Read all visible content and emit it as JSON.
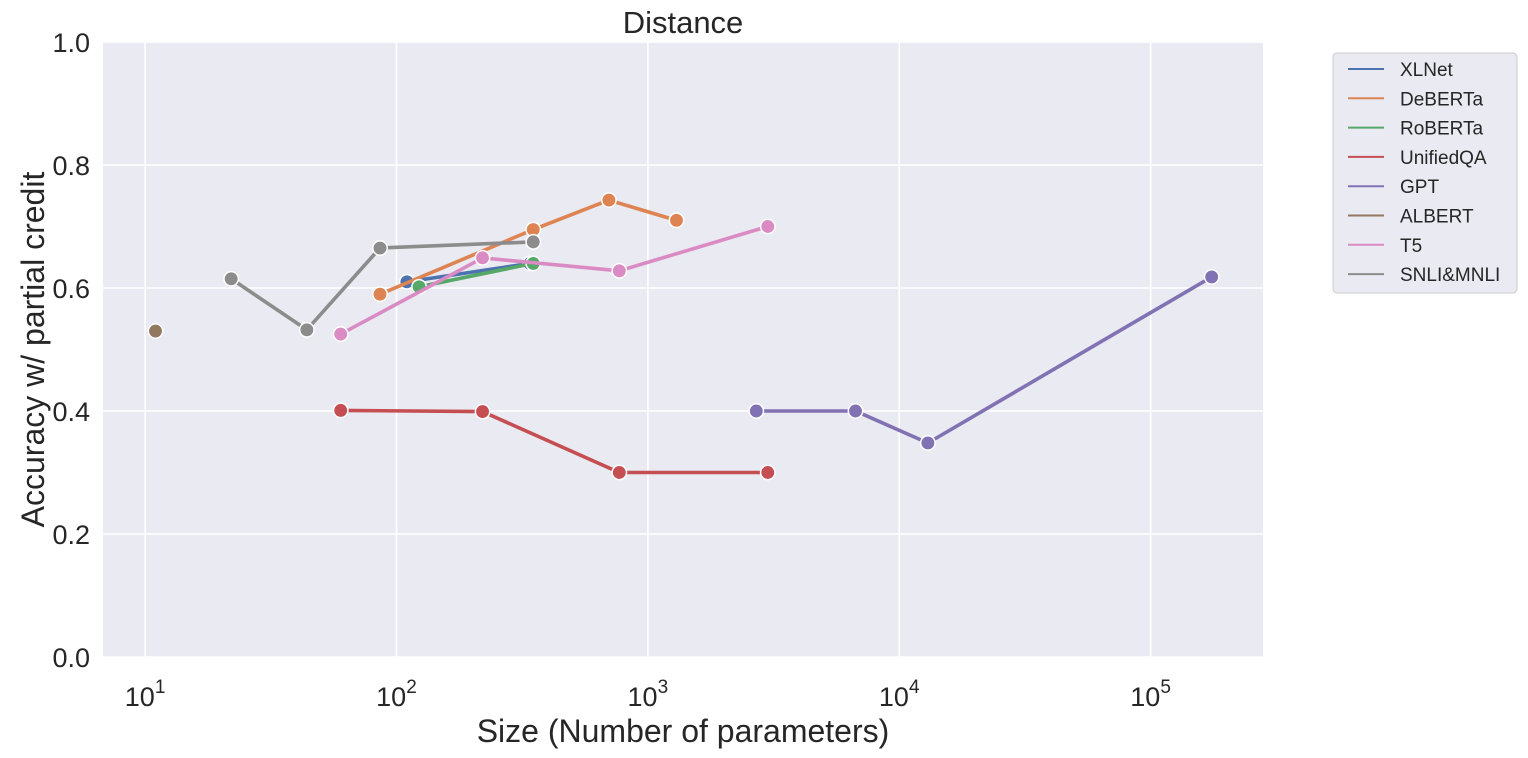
{
  "chart_data": {
    "type": "line",
    "title": "Distance",
    "xlabel": "Size (Number of parameters)",
    "ylabel": "Accuracy w/ partial credit",
    "x_scale": "log",
    "xlim": [
      6.8,
      280000
    ],
    "ylim": [
      0.0,
      1.0
    ],
    "x_ticks": [
      {
        "value": 10,
        "base": "10",
        "exp": "1"
      },
      {
        "value": 100,
        "base": "10",
        "exp": "2"
      },
      {
        "value": 1000,
        "base": "10",
        "exp": "3"
      },
      {
        "value": 10000,
        "base": "10",
        "exp": "4"
      },
      {
        "value": 100000,
        "base": "10",
        "exp": "5"
      }
    ],
    "y_ticks": [
      "0.0",
      "0.2",
      "0.4",
      "0.6",
      "0.8",
      "1.0"
    ],
    "grid": true,
    "legend_position": "outside-top-right",
    "series": [
      {
        "name": "XLNet",
        "color": "#4c72b0",
        "points": [
          [
            110,
            0.61
          ],
          [
            340,
            0.64
          ]
        ]
      },
      {
        "name": "DeBERTa",
        "color": "#dd8452",
        "points": [
          [
            86,
            0.59
          ],
          [
            350,
            0.695
          ],
          [
            700,
            0.743
          ],
          [
            1300,
            0.71
          ]
        ]
      },
      {
        "name": "RoBERTa",
        "color": "#55a868",
        "points": [
          [
            123,
            0.602
          ],
          [
            350,
            0.64
          ]
        ]
      },
      {
        "name": "UnifiedQA",
        "color": "#c44e52",
        "points": [
          [
            60,
            0.401
          ],
          [
            220,
            0.399
          ],
          [
            770,
            0.3
          ],
          [
            3000,
            0.3
          ]
        ]
      },
      {
        "name": "GPT",
        "color": "#8172b3",
        "points": [
          [
            2700,
            0.4
          ],
          [
            6700,
            0.4
          ],
          [
            13000,
            0.348
          ],
          [
            175000,
            0.618
          ]
        ]
      },
      {
        "name": "ALBERT",
        "color": "#937860",
        "points": [
          [
            11,
            0.53
          ]
        ]
      },
      {
        "name": "T5",
        "color": "#da8bc3",
        "points": [
          [
            60,
            0.525
          ],
          [
            220,
            0.649
          ],
          [
            770,
            0.628
          ],
          [
            3000,
            0.7
          ]
        ]
      },
      {
        "name": "SNLI&MNLI",
        "color": "#8c8c8c",
        "points": [
          [
            22,
            0.615
          ],
          [
            44,
            0.532
          ],
          [
            86,
            0.665
          ],
          [
            350,
            0.675
          ]
        ]
      }
    ]
  }
}
